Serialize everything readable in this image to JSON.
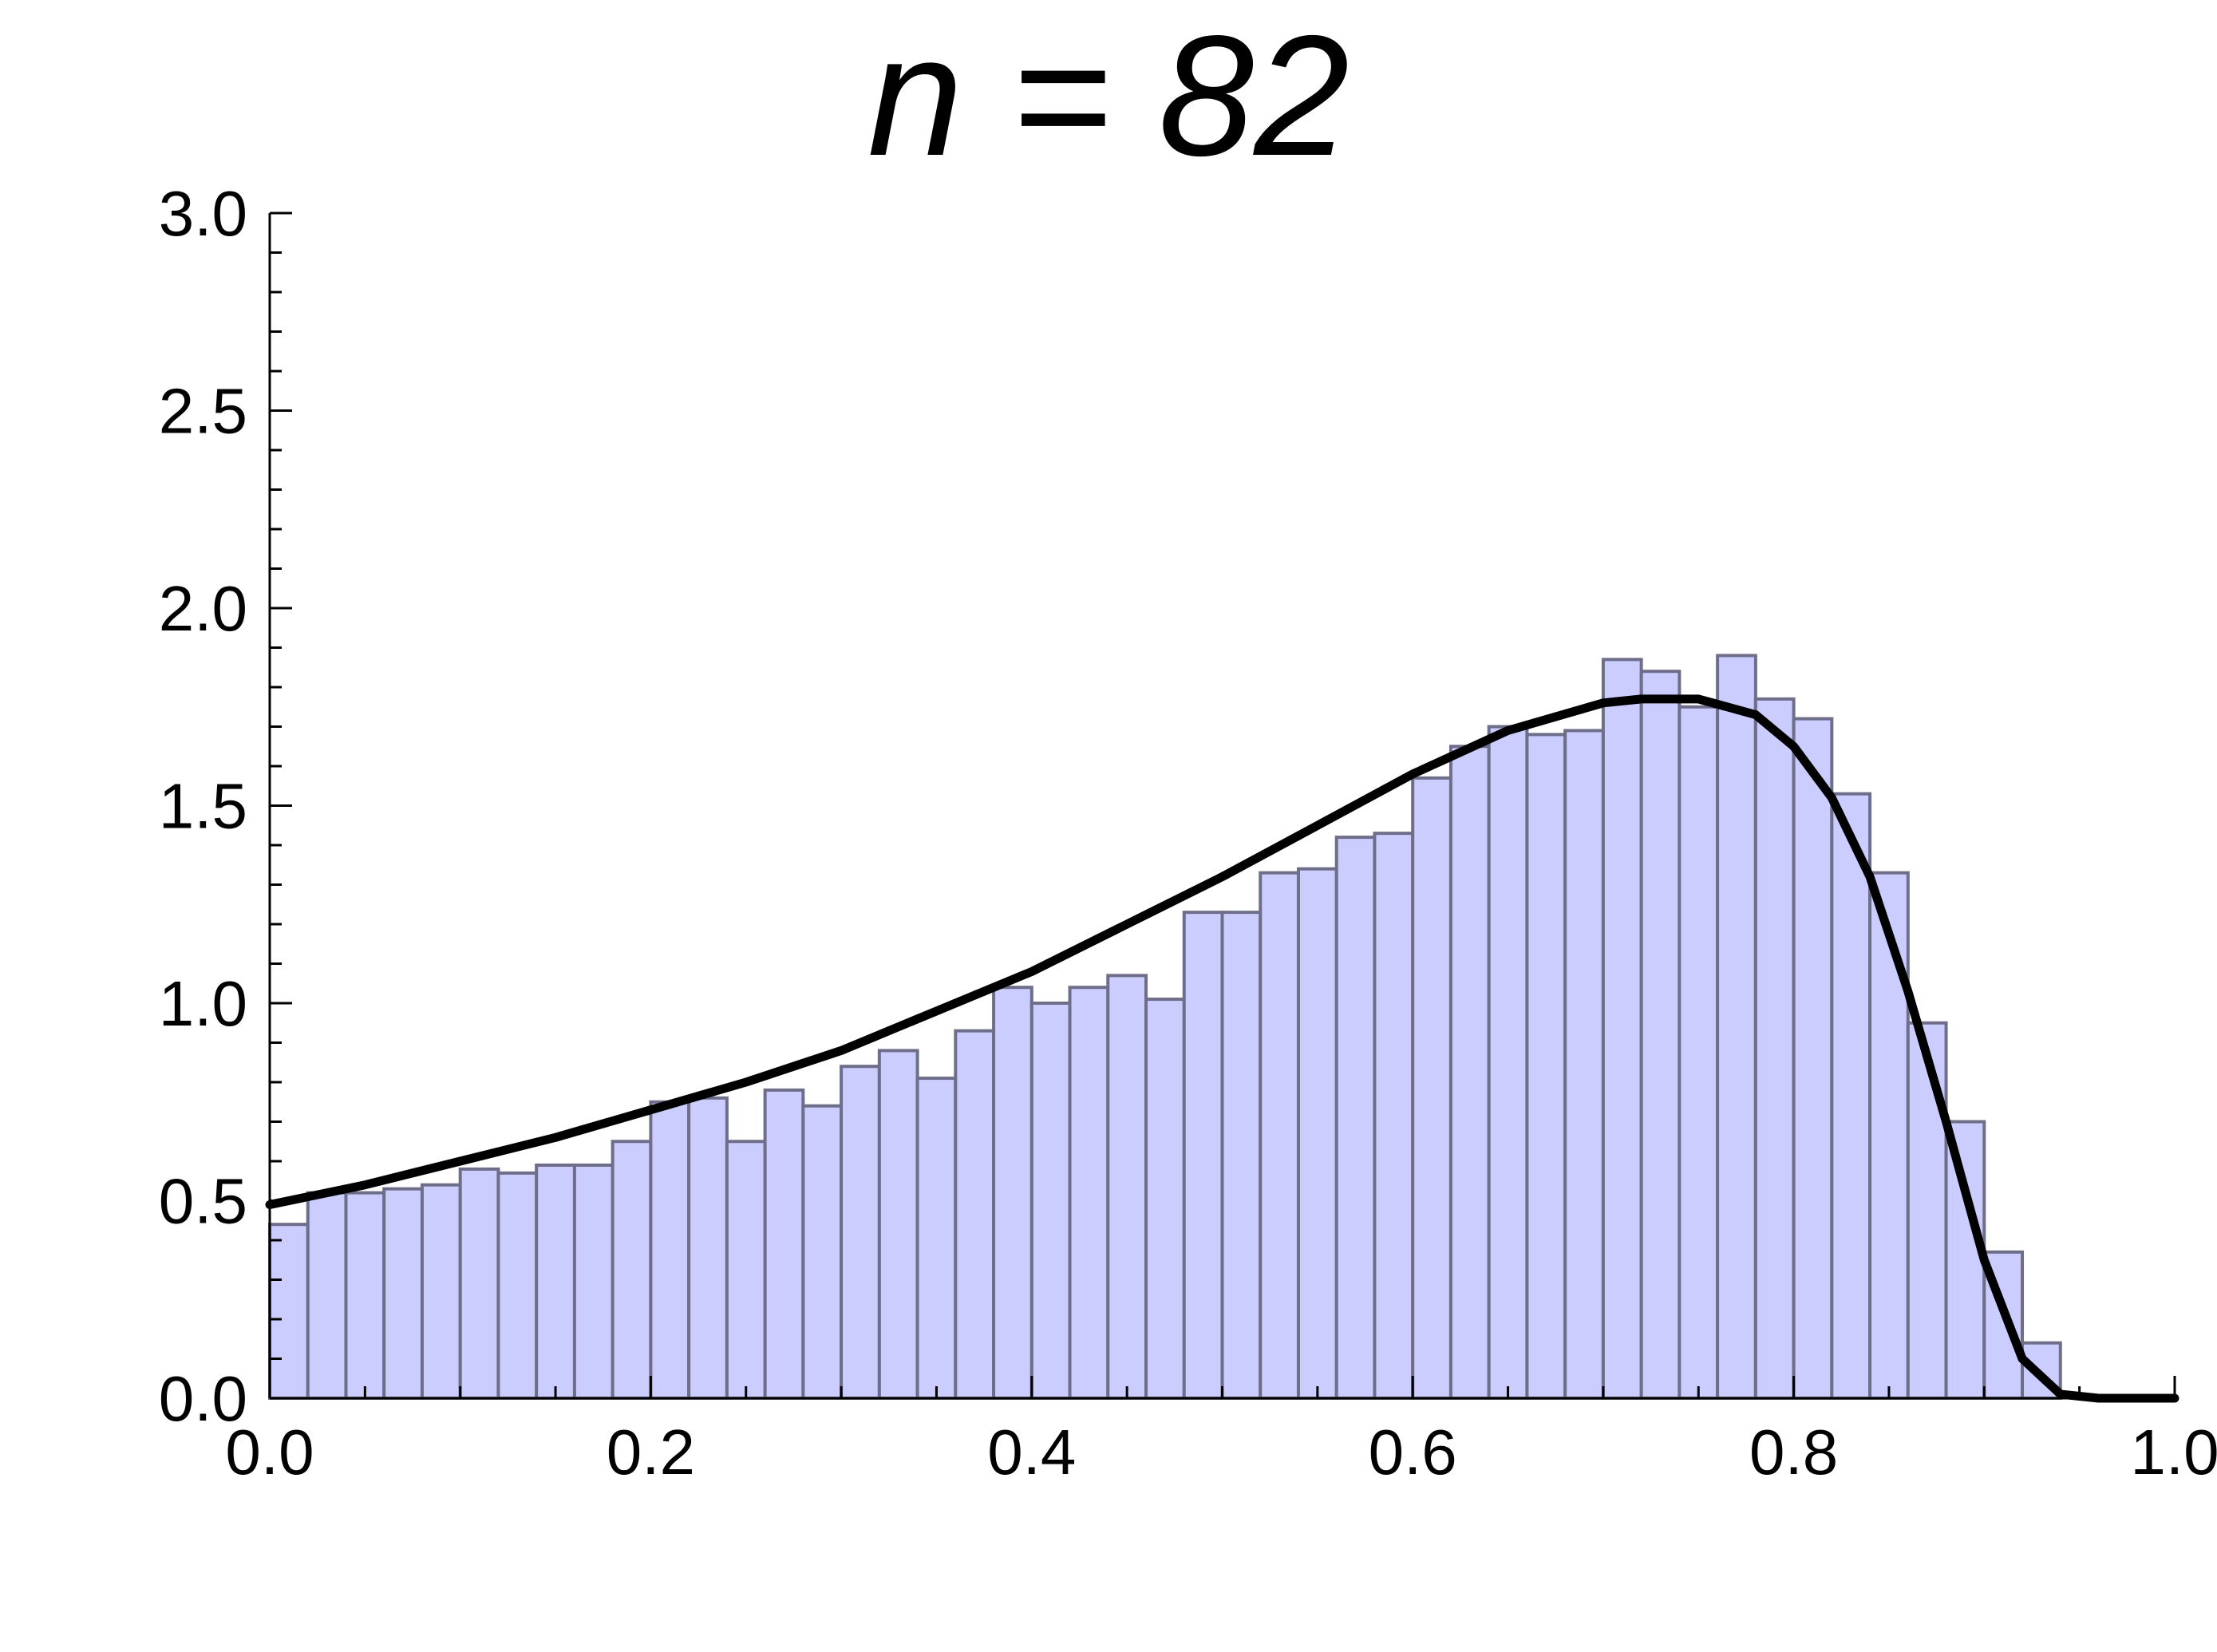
{
  "chart_data": {
    "type": "bar",
    "title": "n = 82",
    "xlabel": "",
    "ylabel": "",
    "xlim": [
      0,
      1
    ],
    "ylim": [
      0,
      3
    ],
    "x_ticks": [
      "0.0",
      "0.2",
      "0.4",
      "0.6",
      "0.8",
      "1.0"
    ],
    "y_ticks": [
      "0.0",
      "0.5",
      "1.0",
      "1.5",
      "2.0",
      "2.5",
      "3.0"
    ],
    "grid": false,
    "histogram": {
      "bin_width": 0.02,
      "bin_start": 0.0,
      "values": [
        0.44,
        0.52,
        0.52,
        0.53,
        0.54,
        0.58,
        0.57,
        0.59,
        0.59,
        0.65,
        0.75,
        0.76,
        0.65,
        0.78,
        0.74,
        0.84,
        0.88,
        0.81,
        0.93,
        1.04,
        1.0,
        1.04,
        1.07,
        1.01,
        1.23,
        1.23,
        1.33,
        1.34,
        1.42,
        1.43,
        1.57,
        1.65,
        1.7,
        1.68,
        1.69,
        1.87,
        1.84,
        1.75,
        1.88,
        1.77,
        1.72,
        1.53,
        1.33,
        0.95,
        0.7,
        0.37,
        0.14,
        0.0,
        0.0,
        0.0
      ],
      "fill_color": "#cccdff",
      "edge_color": "#6e6e8a"
    },
    "curve": {
      "x": [
        0.0,
        0.05,
        0.1,
        0.15,
        0.2,
        0.25,
        0.3,
        0.35,
        0.4,
        0.45,
        0.5,
        0.55,
        0.6,
        0.65,
        0.7,
        0.72,
        0.75,
        0.78,
        0.8,
        0.82,
        0.84,
        0.86,
        0.88,
        0.9,
        0.92,
        0.94,
        0.96,
        0.98,
        1.0
      ],
      "y": [
        0.49,
        0.54,
        0.6,
        0.66,
        0.73,
        0.8,
        0.88,
        0.98,
        1.08,
        1.2,
        1.32,
        1.45,
        1.58,
        1.69,
        1.76,
        1.77,
        1.77,
        1.73,
        1.65,
        1.52,
        1.32,
        1.03,
        0.7,
        0.35,
        0.1,
        0.01,
        0.0,
        0.0,
        0.0
      ],
      "color": "#000000"
    }
  }
}
